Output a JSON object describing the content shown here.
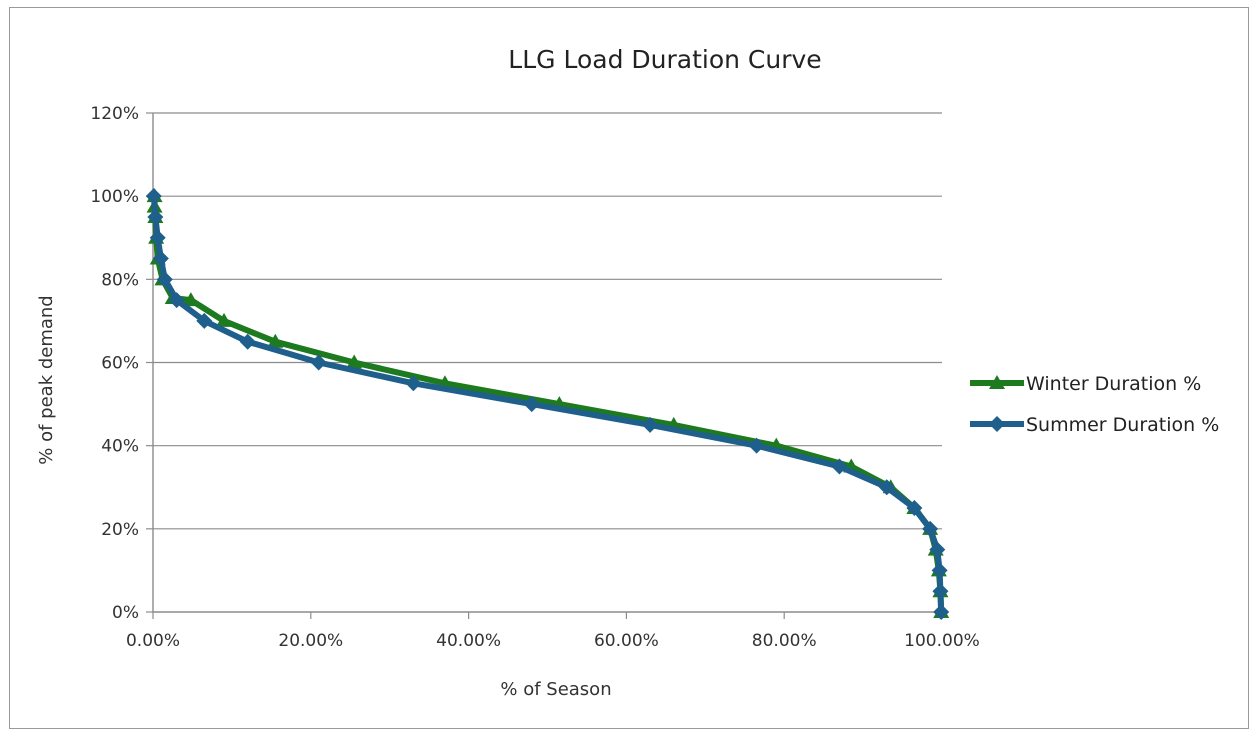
{
  "chart_data": {
    "type": "line",
    "title": "LLG Load Duration Curve",
    "xlabel": "% of Season",
    "ylabel": "% of peak demand",
    "xlim": [
      0,
      100
    ],
    "ylim": [
      0,
      120
    ],
    "x_ticks": [
      "0.00%",
      "20.00%",
      "40.00%",
      "60.00%",
      "80.00%",
      "100.00%"
    ],
    "y_ticks": [
      "0%",
      "20%",
      "40%",
      "60%",
      "80%",
      "100%",
      "120%"
    ],
    "grid": "horizontal",
    "legend_position": "right",
    "series": [
      {
        "name": "Winter Duration %",
        "color": "#1e7a1e",
        "marker": "triangle",
        "points": [
          [
            0.2,
            100
          ],
          [
            0.2,
            97.5
          ],
          [
            0.3,
            95
          ],
          [
            0.4,
            90
          ],
          [
            0.6,
            85
          ],
          [
            1.2,
            80
          ],
          [
            2.5,
            75.5
          ],
          [
            4.8,
            75
          ],
          [
            9,
            70
          ],
          [
            15.5,
            65
          ],
          [
            25.5,
            60
          ],
          [
            37,
            55
          ],
          [
            51.5,
            50
          ],
          [
            66,
            45
          ],
          [
            79,
            40
          ],
          [
            88.5,
            35
          ],
          [
            93.5,
            30
          ],
          [
            96.5,
            25
          ],
          [
            98.5,
            20
          ],
          [
            99.2,
            15
          ],
          [
            99.6,
            10
          ],
          [
            99.8,
            5
          ],
          [
            99.9,
            0
          ]
        ]
      },
      {
        "name": "Summer Duration %",
        "color": "#1e5f8c",
        "marker": "diamond",
        "points": [
          [
            0.1,
            100
          ],
          [
            0.3,
            95
          ],
          [
            0.6,
            90
          ],
          [
            1,
            85
          ],
          [
            1.5,
            80
          ],
          [
            3,
            75
          ],
          [
            6.5,
            70
          ],
          [
            12,
            65
          ],
          [
            21,
            60
          ],
          [
            33,
            55
          ],
          [
            48,
            50
          ],
          [
            63,
            45
          ],
          [
            76.5,
            40
          ],
          [
            87,
            35
          ],
          [
            93,
            30
          ],
          [
            96.5,
            25
          ],
          [
            98.5,
            20
          ],
          [
            99.4,
            15
          ],
          [
            99.7,
            10
          ],
          [
            99.8,
            5
          ],
          [
            99.9,
            0
          ]
        ]
      }
    ]
  }
}
